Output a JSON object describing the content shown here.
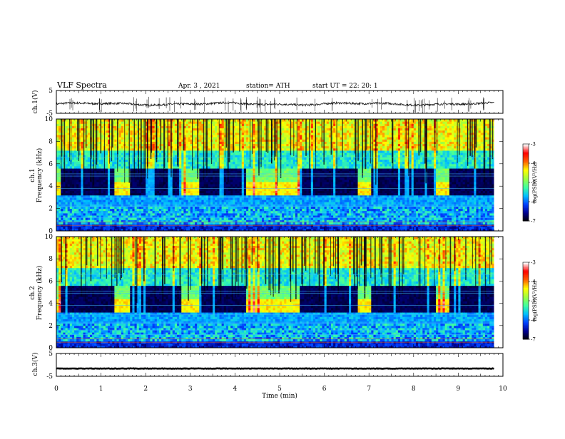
{
  "header": {
    "title": "VLF Spectra",
    "date": "Apr. 3 , 2021",
    "station": "station= ATH",
    "start_ut": "start UT = 22: 20: 1"
  },
  "colors": {
    "ch1_trace": "#111111",
    "ch3_trace": "#000000",
    "colormap": [
      "#000000",
      "#00008f",
      "#0040ff",
      "#00bfff",
      "#40ff9f",
      "#9fff40",
      "#ffff00",
      "#ff6000",
      "#ff0000",
      "#ffffff"
    ]
  },
  "chart_data": [
    {
      "type": "line",
      "panel": "ch1",
      "ylabel": "ch.1(V)",
      "ylim": [
        -5,
        5
      ],
      "yticks": [
        "5",
        "-5"
      ],
      "series": [
        {
          "level": -0.9,
          "noise_amplitude": 0.45
        }
      ],
      "xlim": [
        0,
        10
      ]
    },
    {
      "type": "heatmap",
      "panel": "ch1",
      "ylabel_lines": [
        "ch.1",
        "Frequency (kHz)"
      ],
      "ylim": [
        0,
        10
      ],
      "yticks": [
        "0",
        "2",
        "4",
        "6",
        "8",
        "10"
      ],
      "xlim": [
        0,
        10
      ],
      "quiet_intervals_min": [
        [
          0.1,
          1.3
        ],
        [
          1.65,
          2.8
        ],
        [
          3.2,
          4.25
        ],
        [
          5.45,
          6.75
        ],
        [
          7.05,
          8.5
        ],
        [
          8.8,
          9.8
        ]
      ],
      "active_intervals_min": [
        [
          0,
          0.1
        ],
        [
          1.3,
          1.65
        ],
        [
          2.8,
          3.2
        ],
        [
          4.25,
          5.45
        ],
        [
          6.75,
          7.05
        ],
        [
          8.5,
          8.8
        ]
      ],
      "colorbar": {
        "label": "log(PSD)(V²/Hz)",
        "ticks": [
          "-3",
          "-4",
          "-5",
          "-6",
          "-7"
        ],
        "range": [
          -7,
          -3
        ]
      }
    },
    {
      "type": "heatmap",
      "panel": "ch2",
      "ylabel_lines": [
        "ch.2",
        "Frequency (kHz)"
      ],
      "ylim": [
        0,
        10
      ],
      "yticks": [
        "0",
        "2",
        "4",
        "6",
        "8",
        "10"
      ],
      "xlim": [
        0,
        10
      ],
      "quiet_intervals_min": [
        [
          0.1,
          1.3
        ],
        [
          1.65,
          2.8
        ],
        [
          3.2,
          4.25
        ],
        [
          5.45,
          6.75
        ],
        [
          7.05,
          8.5
        ],
        [
          8.8,
          9.8
        ]
      ],
      "active_intervals_min": [
        [
          0,
          0.1
        ],
        [
          1.3,
          1.65
        ],
        [
          2.8,
          3.2
        ],
        [
          4.25,
          5.45
        ],
        [
          6.75,
          7.05
        ],
        [
          8.5,
          8.8
        ]
      ],
      "colorbar": {
        "label": "log(PSD)(V²/Hz)",
        "ticks": [
          "-3",
          "-4",
          "-5",
          "-6",
          "-7"
        ],
        "range": [
          -7,
          -3
        ]
      }
    },
    {
      "type": "line",
      "panel": "ch3",
      "ylabel": "ch.3(V)",
      "ylim": [
        -5,
        5
      ],
      "yticks": [
        "5",
        "-5"
      ],
      "xlim": [
        0,
        10
      ],
      "series": [
        {
          "level": -1.6,
          "noise_amplitude": 0.1
        }
      ],
      "xlabel": "Time (min)",
      "xticks": [
        "0",
        "1",
        "2",
        "3",
        "4",
        "5",
        "6",
        "7",
        "8",
        "9",
        "10"
      ]
    }
  ]
}
